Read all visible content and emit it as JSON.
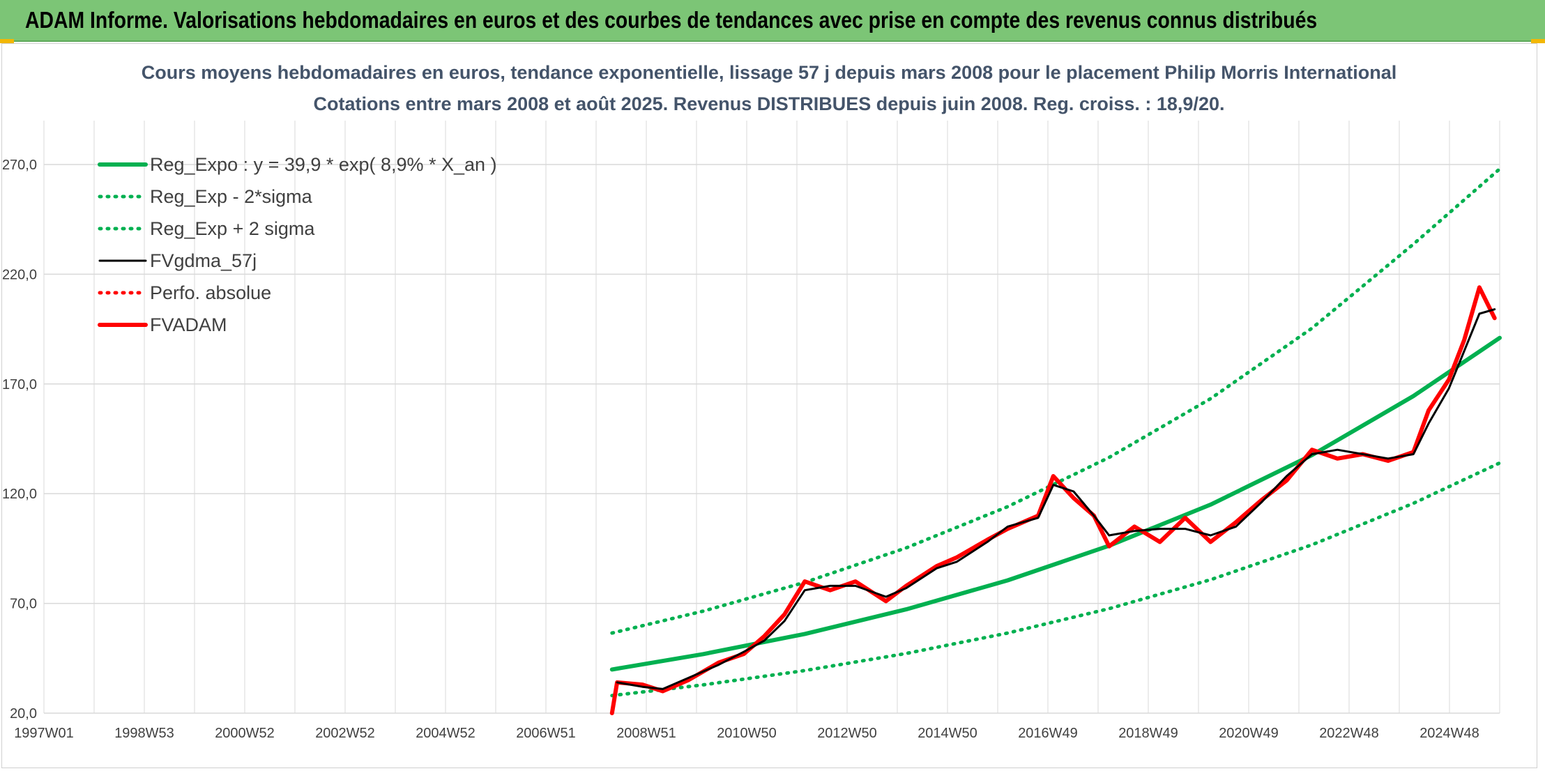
{
  "banner": {
    "title": "ADAM Informe. Valorisations hebdomadaires en euros et des courbes de tendances avec prise en compte des revenus connus distribués"
  },
  "colors": {
    "banner_bg": "#7cc576",
    "reg": "#00b050",
    "fvgdma": "#000000",
    "fvadam": "#ff0000",
    "accent": "#f2b705"
  },
  "chart_data": {
    "type": "line",
    "title": "Cours moyens hebdomadaires en euros, tendance exponentielle, lissage 57 j depuis mars 2008 pour le placement Philip Morris International",
    "subtitle": "Cotations entre mars 2008 et août 2025. Revenus DISTRIBUES depuis juin 2008. Reg. croiss. : 18,9/20.",
    "x_tick_labels": [
      "1997W01",
      "1998W53",
      "2000W52",
      "2002W52",
      "2004W52",
      "2006W51",
      "2008W51",
      "2010W50",
      "2012W50",
      "2014W50",
      "2016W49",
      "2018W49",
      "2020W49",
      "2022W48",
      "2024W48"
    ],
    "x_range": [
      1997.0,
      2025.7
    ],
    "y_tick_labels": [
      "20,0",
      "70,0",
      "120,0",
      "170,0",
      "220,0",
      "270,0"
    ],
    "ylim": [
      20,
      290
    ],
    "grid": true,
    "legend_position": "top-left",
    "series": [
      {
        "name": "Reg_Expo : y = 39,9 * exp( 8,9% *  X_an )",
        "style": "solid-thick",
        "color": "#00b050",
        "x": [
          2008.2,
          2010.0,
          2012.0,
          2014.0,
          2016.0,
          2018.0,
          2020.0,
          2022.0,
          2024.0,
          2025.7
        ],
        "y": [
          39.9,
          46.9,
          56.1,
          67.3,
          80.5,
          96.3,
          115.0,
          137.6,
          164.5,
          191.0
        ]
      },
      {
        "name": "Reg_Exp - 2*sigma",
        "style": "dotted",
        "color": "#00b050",
        "x": [
          2008.2,
          2010.0,
          2012.0,
          2014.0,
          2016.0,
          2018.0,
          2020.0,
          2022.0,
          2024.0,
          2025.7
        ],
        "y": [
          28.0,
          32.9,
          39.4,
          47.2,
          56.5,
          67.6,
          80.8,
          96.7,
          115.6,
          134.0
        ]
      },
      {
        "name": "Reg_Exp + 2 sigma",
        "style": "dotted",
        "color": "#00b050",
        "x": [
          2008.2,
          2010.0,
          2012.0,
          2014.0,
          2016.0,
          2018.0,
          2020.0,
          2022.0,
          2024.0,
          2025.7
        ],
        "y": [
          56.5,
          66.5,
          79.6,
          95.3,
          114.1,
          136.5,
          163.3,
          195.4,
          233.7,
          268.0
        ]
      },
      {
        "name": "FVgdma_57j",
        "style": "solid",
        "color": "#000000",
        "x": [
          2008.3,
          2008.8,
          2009.2,
          2009.7,
          2010.3,
          2010.8,
          2011.2,
          2011.6,
          2012.0,
          2012.5,
          2013.0,
          2013.6,
          2014.0,
          2014.6,
          2015.0,
          2015.6,
          2016.0,
          2016.6,
          2016.9,
          2017.3,
          2017.7,
          2018.0,
          2018.5,
          2019.0,
          2019.5,
          2020.0,
          2020.5,
          2021.0,
          2021.5,
          2022.0,
          2022.5,
          2023.0,
          2023.5,
          2024.0,
          2024.3,
          2024.7,
          2025.0,
          2025.3,
          2025.6
        ],
        "y": [
          34,
          32,
          31,
          36,
          42,
          48,
          53,
          62,
          76,
          78,
          78,
          73,
          77,
          86,
          89,
          98,
          105,
          109,
          124,
          121,
          110,
          101,
          103,
          104,
          104,
          101,
          105,
          116,
          128,
          138,
          140,
          138,
          136,
          138,
          152,
          168,
          185,
          202,
          204
        ]
      },
      {
        "name": "Perfo. absolue",
        "style": "dotted",
        "color": "#ff0000",
        "x": [
          2008.2,
          2008.3,
          2008.8,
          2009.2,
          2009.7,
          2010.3,
          2010.8,
          2011.2,
          2011.6,
          2012.0,
          2012.5,
          2013.0,
          2013.6,
          2014.0,
          2014.6,
          2015.0,
          2015.6,
          2016.0,
          2016.6,
          2016.9,
          2017.3,
          2017.7,
          2018.0,
          2018.5,
          2019.0,
          2019.5,
          2020.0,
          2020.5,
          2021.0,
          2021.5,
          2022.0,
          2022.5,
          2023.0,
          2023.5,
          2024.0,
          2024.3,
          2024.7,
          2025.0,
          2025.3,
          2025.6
        ],
        "y": [
          20,
          34,
          33,
          30,
          35,
          43,
          47,
          55,
          65,
          80,
          76,
          80,
          71,
          78,
          87,
          91,
          99,
          104,
          110,
          128,
          118,
          110,
          96,
          105,
          98,
          109,
          98,
          107,
          117,
          126,
          140,
          136,
          138,
          135,
          139,
          158,
          172,
          190,
          214,
          200
        ]
      },
      {
        "name": "FVADAM",
        "style": "solid-thick",
        "color": "#ff0000",
        "x": [
          2008.2,
          2008.3,
          2008.8,
          2009.2,
          2009.7,
          2010.3,
          2010.8,
          2011.2,
          2011.6,
          2012.0,
          2012.5,
          2013.0,
          2013.6,
          2014.0,
          2014.6,
          2015.0,
          2015.6,
          2016.0,
          2016.6,
          2016.9,
          2017.3,
          2017.7,
          2018.0,
          2018.5,
          2019.0,
          2019.5,
          2020.0,
          2020.5,
          2021.0,
          2021.5,
          2022.0,
          2022.5,
          2023.0,
          2023.5,
          2024.0,
          2024.3,
          2024.7,
          2025.0,
          2025.3,
          2025.6
        ],
        "y": [
          20,
          34,
          33,
          30,
          35,
          43,
          47,
          55,
          65,
          80,
          76,
          80,
          71,
          78,
          87,
          91,
          99,
          104,
          110,
          128,
          118,
          110,
          96,
          105,
          98,
          109,
          98,
          107,
          117,
          126,
          140,
          136,
          138,
          135,
          139,
          158,
          172,
          190,
          214,
          200
        ]
      }
    ]
  }
}
